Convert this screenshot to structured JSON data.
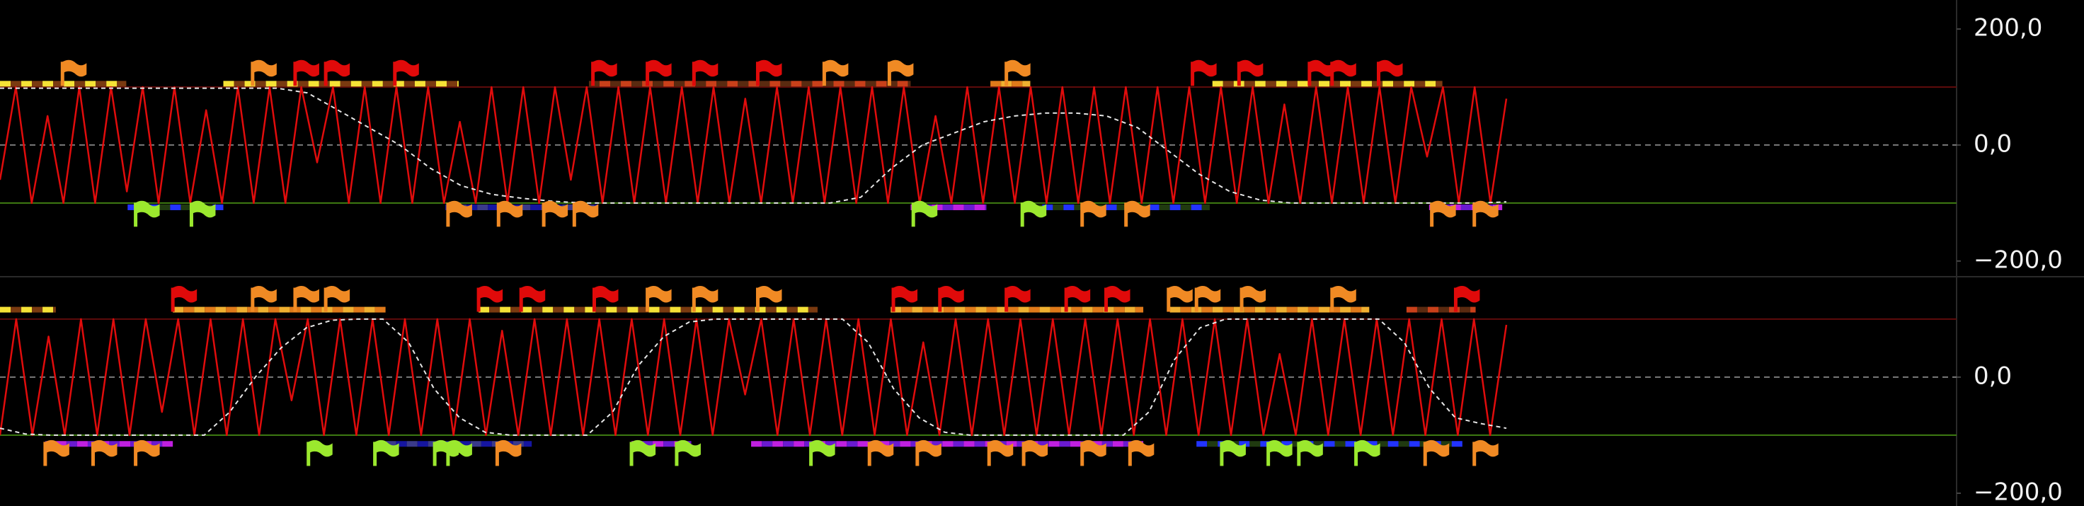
{
  "chart_data": [
    {
      "type": "line",
      "ylim": [
        -227,
        250
      ],
      "yticks": [
        {
          "value": 200,
          "label": "200,0"
        },
        {
          "value": 0,
          "label": "0,0"
        },
        {
          "value": -200,
          "label": "−200,0"
        }
      ],
      "levels": [
        {
          "value": 100,
          "color": "#5e0b0b"
        },
        {
          "value": 0,
          "color": "#7a7a7a",
          "dash": true
        },
        {
          "value": -100,
          "color": "#3f7d12"
        }
      ],
      "series": [
        {
          "color": "#e00c0c",
          "values": [
            -60,
            100,
            -100,
            50,
            -100,
            100,
            -100,
            100,
            -80,
            100,
            -100,
            100,
            -100,
            60,
            -100,
            100,
            -100,
            100,
            -100,
            100,
            -30,
            100,
            -100,
            100,
            -100,
            100,
            -100,
            100,
            -100,
            40,
            -100,
            100,
            -100,
            100,
            -100,
            100,
            -60,
            100,
            -100,
            100,
            -100,
            100,
            -100,
            100,
            -100,
            100,
            -100,
            80,
            -100,
            100,
            -100,
            100,
            -100,
            100,
            -100,
            100,
            -100,
            100,
            -100,
            50,
            -100,
            100,
            -100,
            100,
            -100,
            100,
            -100,
            100,
            -100,
            100,
            -100,
            100,
            -100,
            100,
            -100,
            100,
            -100,
            100,
            -100,
            100,
            -100,
            70,
            -100,
            100,
            -100,
            100,
            -100,
            100,
            -100,
            100,
            -20,
            100,
            -100,
            100,
            -100,
            80
          ]
        },
        {
          "color": "#e6e6e6",
          "dash": true,
          "values": [
            98,
            98,
            98,
            98,
            98,
            98,
            98,
            98,
            98,
            98,
            90,
            60,
            30,
            0,
            -40,
            -70,
            -85,
            -92,
            -97,
            -100,
            -100,
            -100,
            -100,
            -100,
            -100,
            -100,
            -100,
            -100,
            -90,
            -40,
            0,
            20,
            40,
            50,
            55,
            55,
            50,
            30,
            -10,
            -50,
            -80,
            -95,
            -100,
            -100,
            -100,
            -100,
            -100,
            -100,
            -100,
            -98
          ]
        }
      ]
    },
    {
      "type": "line",
      "ylim": [
        -222,
        173
      ],
      "yticks": [
        {
          "value": 0,
          "label": "0,0"
        },
        {
          "value": -200,
          "label": "−200,0"
        }
      ],
      "levels": [
        {
          "value": 100,
          "color": "#5e0b0b"
        },
        {
          "value": 0,
          "color": "#7a7a7a",
          "dash": true
        },
        {
          "value": -100,
          "color": "#3f7d12"
        }
      ],
      "series": [
        {
          "color": "#e00c0c",
          "values": [
            -100,
            100,
            -100,
            70,
            -100,
            100,
            -100,
            100,
            -100,
            100,
            -60,
            100,
            -100,
            100,
            -100,
            100,
            -100,
            100,
            -40,
            100,
            -100,
            100,
            -100,
            100,
            -100,
            100,
            -100,
            100,
            -100,
            100,
            -100,
            80,
            -100,
            100,
            -100,
            100,
            -100,
            100,
            -100,
            100,
            -100,
            100,
            -100,
            100,
            -100,
            100,
            -30,
            100,
            -100,
            100,
            -100,
            100,
            -100,
            100,
            -100,
            100,
            -100,
            60,
            -100,
            100,
            -100,
            100,
            -100,
            100,
            -100,
            100,
            -100,
            100,
            -100,
            100,
            -100,
            100,
            -100,
            100,
            -100,
            100,
            -100,
            100,
            -100,
            40,
            -100,
            100,
            -100,
            100,
            -100,
            100,
            -100,
            100,
            -100,
            100,
            -100,
            100,
            -100,
            90
          ]
        },
        {
          "color": "#e6e6e6",
          "dash": true,
          "values": [
            -88,
            -98,
            -100,
            -100,
            -100,
            -100,
            -100,
            -100,
            -100,
            -60,
            0,
            50,
            85,
            98,
            100,
            100,
            60,
            -20,
            -70,
            -95,
            -100,
            -100,
            -100,
            -100,
            -60,
            20,
            70,
            95,
            100,
            100,
            100,
            100,
            100,
            100,
            60,
            -20,
            -70,
            -95,
            -100,
            -100,
            -100,
            -100,
            -100,
            -100,
            -100,
            -60,
            30,
            85,
            100,
            100,
            100,
            100,
            100,
            100,
            100,
            60,
            -20,
            -70,
            -80,
            -88
          ]
        }
      ]
    }
  ]
}
